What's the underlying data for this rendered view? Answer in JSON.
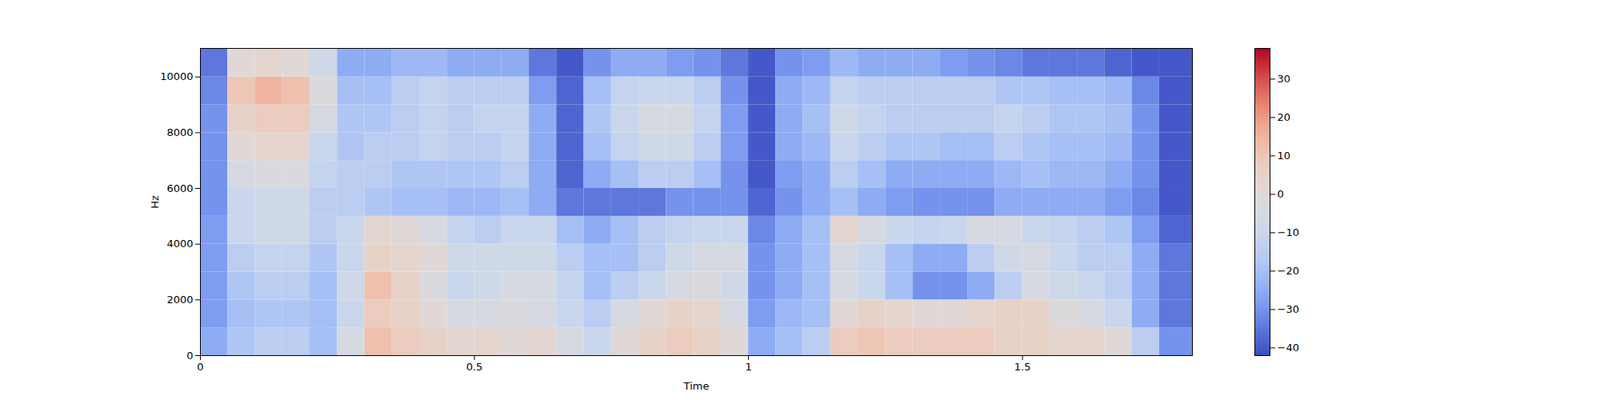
{
  "chart_data": {
    "type": "spectrogram",
    "x_label": "Time",
    "y_label": "Hz",
    "xlim": [
      0,
      1.81
    ],
    "xticks": [
      0,
      0.5,
      1,
      1.5
    ],
    "ylim": [
      0,
      11025
    ],
    "yticks": [
      0,
      2000,
      4000,
      6000,
      8000,
      10000
    ],
    "x_edges": [
      0,
      0.05,
      0.1,
      0.15,
      0.2,
      0.25,
      0.3,
      0.35,
      0.4,
      0.45,
      0.5,
      0.55,
      0.6,
      0.65,
      0.7,
      0.75,
      0.8,
      0.85,
      0.9,
      0.95,
      1.0,
      1.05,
      1.1,
      1.15,
      1.2,
      1.25,
      1.3,
      1.35,
      1.4,
      1.45,
      1.5,
      1.55,
      1.6,
      1.65,
      1.7,
      1.75,
      1.81
    ],
    "y_edges": [
      0,
      1000,
      2000,
      3000,
      4000,
      5000,
      6000,
      7000,
      8000,
      9000,
      10000,
      11025
    ],
    "cells": [
      [
        -25,
        -18,
        -15,
        -15,
        -20,
        -5,
        12,
        8,
        5,
        2,
        3,
        0,
        2,
        -5,
        -10,
        0,
        5,
        8,
        5,
        0,
        -25,
        -20,
        -15,
        8,
        10,
        8,
        8,
        8,
        8,
        5,
        5,
        3,
        3,
        0,
        -15,
        -30
      ],
      [
        -28,
        -20,
        -18,
        -18,
        -20,
        -10,
        8,
        5,
        0,
        -5,
        -5,
        -3,
        -5,
        -10,
        -15,
        -5,
        0,
        5,
        3,
        -5,
        -28,
        -22,
        -20,
        0,
        5,
        3,
        0,
        0,
        3,
        5,
        5,
        -2,
        -5,
        -10,
        -25,
        -35
      ],
      [
        -28,
        -18,
        -15,
        -15,
        -20,
        -8,
        12,
        5,
        -3,
        -10,
        -8,
        -5,
        -5,
        -12,
        -20,
        -15,
        -10,
        -5,
        -3,
        -8,
        -30,
        -25,
        -20,
        -5,
        -10,
        -20,
        -30,
        -30,
        -25,
        -15,
        -5,
        -8,
        -10,
        -15,
        -25,
        -35
      ],
      [
        -28,
        -15,
        -12,
        -12,
        -18,
        -10,
        5,
        3,
        0,
        -8,
        -8,
        -8,
        -8,
        -15,
        -20,
        -20,
        -15,
        -8,
        -5,
        -5,
        -30,
        -25,
        -20,
        -5,
        -10,
        -20,
        -25,
        -25,
        -15,
        -8,
        -5,
        -10,
        -15,
        -15,
        -25,
        -35
      ],
      [
        -28,
        -10,
        -8,
        -8,
        -15,
        -10,
        2,
        0,
        -5,
        -12,
        -15,
        -10,
        -10,
        -20,
        -25,
        -20,
        -15,
        -12,
        -10,
        -10,
        -32,
        -25,
        -20,
        2,
        -5,
        -10,
        -12,
        -10,
        -5,
        -5,
        -10,
        -12,
        -15,
        -18,
        -28,
        -38
      ],
      [
        -30,
        -10,
        -8,
        -8,
        -15,
        -15,
        -18,
        -20,
        -20,
        -22,
        -22,
        -20,
        -25,
        -35,
        -35,
        -35,
        -35,
        -30,
        -30,
        -30,
        -38,
        -30,
        -25,
        -20,
        -25,
        -28,
        -30,
        -30,
        -30,
        -25,
        -25,
        -25,
        -25,
        -28,
        -32,
        -40
      ],
      [
        -30,
        -5,
        -3,
        -3,
        -12,
        -15,
        -15,
        -18,
        -18,
        -18,
        -18,
        -15,
        -25,
        -38,
        -25,
        -20,
        -15,
        -15,
        -20,
        -30,
        -40,
        -28,
        -25,
        -15,
        -20,
        -25,
        -25,
        -25,
        -25,
        -22,
        -20,
        -22,
        -22,
        -25,
        -30,
        -40
      ],
      [
        -30,
        0,
        3,
        3,
        -10,
        -18,
        -15,
        -15,
        -12,
        -15,
        -15,
        -12,
        -25,
        -38,
        -20,
        -12,
        -8,
        -8,
        -15,
        -28,
        -40,
        -25,
        -22,
        -10,
        -15,
        -18,
        -18,
        -20,
        -20,
        -15,
        -18,
        -20,
        -20,
        -22,
        -30,
        -40
      ],
      [
        -30,
        5,
        8,
        8,
        -5,
        -18,
        -18,
        -15,
        -12,
        -15,
        -12,
        -12,
        -25,
        -38,
        -18,
        -10,
        -5,
        -5,
        -12,
        -28,
        -40,
        -25,
        -20,
        -8,
        -12,
        -15,
        -15,
        -15,
        -15,
        -12,
        -15,
        -18,
        -18,
        -20,
        -30,
        -40
      ],
      [
        -32,
        10,
        15,
        12,
        -3,
        -20,
        -20,
        -15,
        -12,
        -15,
        -15,
        -15,
        -28,
        -38,
        -20,
        -12,
        -10,
        -10,
        -15,
        -30,
        -40,
        -25,
        -22,
        -12,
        -15,
        -15,
        -15,
        -15,
        -15,
        -18,
        -18,
        -20,
        -20,
        -22,
        -32,
        -40
      ],
      [
        -35,
        0,
        3,
        0,
        -8,
        -25,
        -25,
        -22,
        -22,
        -25,
        -25,
        -25,
        -35,
        -40,
        -30,
        -25,
        -25,
        -28,
        -30,
        -35,
        -40,
        -30,
        -28,
        -22,
        -25,
        -25,
        -25,
        -28,
        -30,
        -32,
        -35,
        -35,
        -35,
        -38,
        -40,
        -40
      ]
    ],
    "colorbar": {
      "range": [
        -42,
        38
      ],
      "ticks": [
        -40,
        -30,
        -20,
        -10,
        0,
        10,
        20,
        30
      ]
    }
  }
}
